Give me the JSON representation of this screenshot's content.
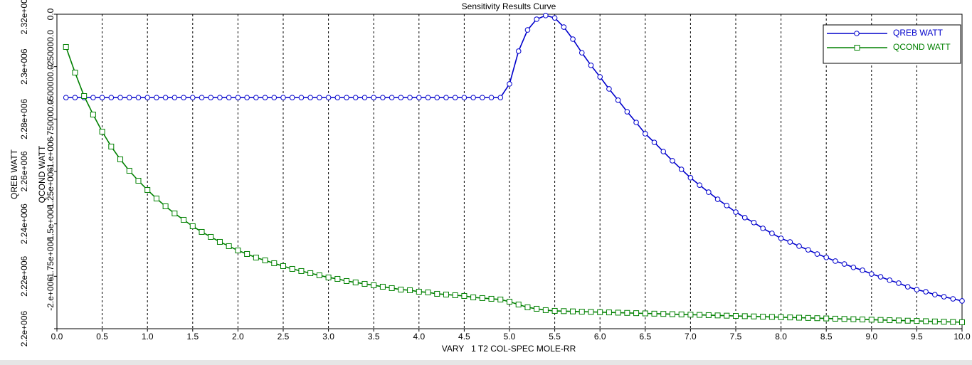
{
  "chart_data": {
    "type": "line",
    "title": "Sensitivity Results Curve",
    "x_label": "VARY   1 T2 COL-SPEC MOLE-RR",
    "y_label": "QREB WATT",
    "y2_label": "QCOND WATT",
    "xlim": [
      0,
      10
    ],
    "ylim": [
      2200000,
      2320000
    ],
    "y2lim": [
      -2250000,
      0
    ],
    "xticks": [
      {
        "value": 0,
        "label": "0.0"
      },
      {
        "value": 0.5,
        "label": "0.5"
      },
      {
        "value": 1,
        "label": "1.0"
      },
      {
        "value": 1.5,
        "label": "1.5"
      },
      {
        "value": 2,
        "label": "2.0"
      },
      {
        "value": 2.5,
        "label": "2.5"
      },
      {
        "value": 3,
        "label": "3.0"
      },
      {
        "value": 3.5,
        "label": "3.5"
      },
      {
        "value": 4,
        "label": "4.0"
      },
      {
        "value": 4.5,
        "label": "4.5"
      },
      {
        "value": 5,
        "label": "5.0"
      },
      {
        "value": 5.5,
        "label": "5.5"
      },
      {
        "value": 6,
        "label": "6.0"
      },
      {
        "value": 6.5,
        "label": "6.5"
      },
      {
        "value": 7,
        "label": "7.0"
      },
      {
        "value": 7.5,
        "label": "7.5"
      },
      {
        "value": 8,
        "label": "8.0"
      },
      {
        "value": 8.5,
        "label": "8.5"
      },
      {
        "value": 9,
        "label": "9.0"
      },
      {
        "value": 9.5,
        "label": "9.5"
      },
      {
        "value": 10,
        "label": "10.0"
      }
    ],
    "yticks": [
      {
        "value": 2200000,
        "label": "2.2e+006"
      },
      {
        "value": 2220000,
        "label": "2.22e+006"
      },
      {
        "value": 2240000,
        "label": "2.24e+006"
      },
      {
        "value": 2260000,
        "label": "2.26e+006"
      },
      {
        "value": 2280000,
        "label": "2.28e+006"
      },
      {
        "value": 2300000,
        "label": "2.3e+006"
      },
      {
        "value": 2320000,
        "label": "2.32e+006"
      }
    ],
    "y2ticks": [
      {
        "value": -2000000,
        "label": "-2.e+006"
      },
      {
        "value": -1750000,
        "label": "-1.75e+006"
      },
      {
        "value": -1500000,
        "label": "-1.5e+006"
      },
      {
        "value": -1250000,
        "label": "-1.25e+006"
      },
      {
        "value": -1000000,
        "label": "-1.e+006"
      },
      {
        "value": -750000,
        "label": "-750000.0"
      },
      {
        "value": -500000,
        "label": "-500000.0"
      },
      {
        "value": -250000,
        "label": "-250000.0"
      },
      {
        "value": 0,
        "label": "0.0"
      }
    ],
    "grid": true,
    "legend": "upper right",
    "x": [
      0.1,
      0.2,
      0.3,
      0.4,
      0.5,
      0.6,
      0.7,
      0.8,
      0.9,
      1.0,
      1.1,
      1.2,
      1.3,
      1.4,
      1.5,
      1.6,
      1.7,
      1.8,
      1.9,
      2.0,
      2.1,
      2.2,
      2.3,
      2.4,
      2.5,
      2.6,
      2.7,
      2.8,
      2.9,
      3.0,
      3.1,
      3.2,
      3.3,
      3.4,
      3.5,
      3.6,
      3.7,
      3.8,
      3.9,
      4.0,
      4.1,
      4.2,
      4.3,
      4.4,
      4.5,
      4.6,
      4.7,
      4.8,
      4.9,
      5.0,
      5.1,
      5.2,
      5.3,
      5.4,
      5.5,
      5.6,
      5.7,
      5.8,
      5.9,
      6.0,
      6.1,
      6.2,
      6.3,
      6.4,
      6.5,
      6.6,
      6.7,
      6.8,
      6.9,
      7.0,
      7.1,
      7.2,
      7.3,
      7.4,
      7.5,
      7.6,
      7.7,
      7.8,
      7.9,
      8.0,
      8.1,
      8.2,
      8.3,
      8.4,
      8.5,
      8.6,
      8.7,
      8.8,
      8.9,
      9.0,
      9.1,
      9.2,
      9.3,
      9.4,
      9.5,
      9.6,
      9.7,
      9.8,
      9.9,
      10.0
    ],
    "series": [
      {
        "name": "QREB WATT",
        "color": "#0000cc",
        "marker": "circle",
        "axis": "y",
        "values": [
          2288200,
          2288200,
          2288200,
          2288200,
          2288200,
          2288200,
          2288200,
          2288200,
          2288200,
          2288200,
          2288200,
          2288200,
          2288200,
          2288200,
          2288200,
          2288200,
          2288200,
          2288200,
          2288200,
          2288200,
          2288200,
          2288200,
          2288200,
          2288200,
          2288200,
          2288200,
          2288200,
          2288200,
          2288200,
          2288200,
          2288200,
          2288200,
          2288200,
          2288200,
          2288200,
          2288200,
          2288200,
          2288200,
          2288200,
          2288200,
          2288200,
          2288200,
          2288200,
          2288200,
          2288200,
          2288200,
          2288200,
          2288200,
          2288200,
          2293400,
          2305900,
          2314000,
          2318100,
          2319500,
          2318600,
          2315100,
          2310500,
          2305300,
          2300500,
          2296100,
          2291500,
          2287200,
          2282800,
          2278700,
          2274400,
          2271100,
          2267600,
          2264100,
          2260800,
          2257600,
          2254800,
          2252100,
          2249400,
          2247000,
          2244500,
          2242400,
          2240500,
          2238300,
          2236400,
          2234500,
          2233100,
          2231500,
          2230100,
          2228500,
          2227200,
          2225800,
          2224700,
          2223400,
          2222300,
          2220900,
          2219800,
          2218500,
          2217400,
          2216000,
          2214900,
          2214100,
          2213000,
          2212200,
          2211400,
          2210600
        ]
      },
      {
        "name": "QCOND WATT",
        "color": "#008000",
        "marker": "square",
        "axis": "y2",
        "values": [
          -234100,
          -417400,
          -585400,
          -717700,
          -839900,
          -946700,
          -1038400,
          -1119800,
          -1191100,
          -1257200,
          -1318300,
          -1374300,
          -1425200,
          -1471000,
          -1516800,
          -1557500,
          -1593200,
          -1628800,
          -1659300,
          -1689900,
          -1715300,
          -1740800,
          -1761100,
          -1781500,
          -1801900,
          -1822200,
          -1837500,
          -1852800,
          -1868000,
          -1883300,
          -1893500,
          -1908800,
          -1918900,
          -1929100,
          -1939300,
          -1949500,
          -1959700,
          -1969800,
          -1974900,
          -1985100,
          -1990200,
          -2000400,
          -2005500,
          -2010600,
          -2015600,
          -2025800,
          -2030900,
          -2036000,
          -2041100,
          -2056400,
          -2076700,
          -2097100,
          -2107300,
          -2117400,
          -2122500,
          -2124300,
          -2126100,
          -2127900,
          -2129700,
          -2131500,
          -2133300,
          -2135100,
          -2136900,
          -2138700,
          -2140500,
          -2142300,
          -2144100,
          -2145900,
          -2147700,
          -2149500,
          -2151300,
          -2153100,
          -2154900,
          -2156700,
          -2158500,
          -2160300,
          -2162100,
          -2163900,
          -2165700,
          -2167500,
          -2169300,
          -2171100,
          -2172900,
          -2174700,
          -2176500,
          -2178300,
          -2180100,
          -2181900,
          -2183700,
          -2185500,
          -2187300,
          -2189100,
          -2190900,
          -2192700,
          -2194500,
          -2196300,
          -2198100,
          -2199900,
          -2201700,
          -2203500
        ]
      }
    ]
  }
}
